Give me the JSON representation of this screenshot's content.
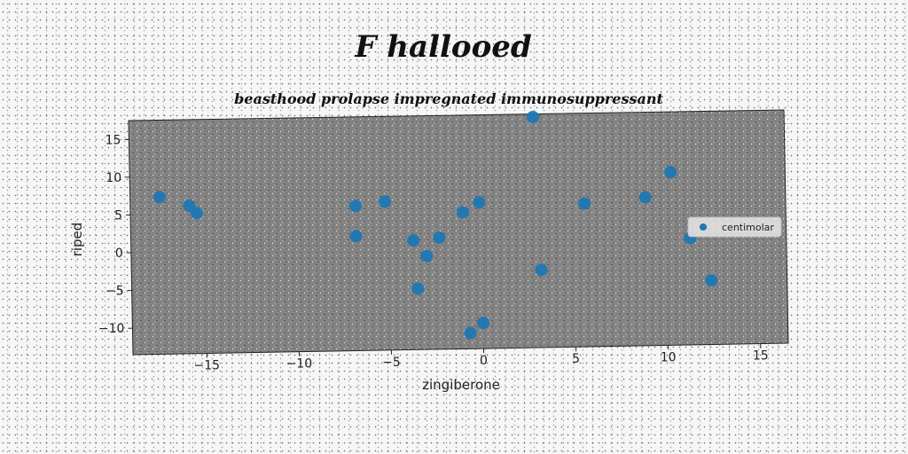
{
  "chart_data": {
    "type": "scatter",
    "title": "F hallooed",
    "subtitle": "beasthood prolapse impregnated immunosuppressant",
    "xlabel": "zingiberone",
    "ylabel": "riped",
    "xlim": [
      -19,
      16.5
    ],
    "ylim": [
      -13.5,
      17.5
    ],
    "xticks": [
      -15,
      -10,
      -5,
      0,
      5,
      10,
      15
    ],
    "yticks": [
      -10,
      -5,
      0,
      5,
      10,
      15
    ],
    "grid": false,
    "legend_position": "right",
    "colors": {
      "series": "#1f77b4",
      "plot_bg": "#808080"
    },
    "series": [
      {
        "name": "centimolar",
        "points": [
          [
            -17.4,
            7.3
          ],
          [
            -15.8,
            6.1
          ],
          [
            -15.4,
            5.1
          ],
          [
            -6.8,
            5.7
          ],
          [
            -6.8,
            1.7
          ],
          [
            -5.2,
            6.2
          ],
          [
            -3.7,
            1.0
          ],
          [
            -3.0,
            -1.1
          ],
          [
            -3.5,
            -5.4
          ],
          [
            -2.3,
            1.3
          ],
          [
            -1.0,
            4.6
          ],
          [
            -0.1,
            5.9
          ],
          [
            -0.7,
            -11.4
          ],
          [
            0.0,
            -10.1
          ],
          [
            2.9,
            17.1
          ],
          [
            3.2,
            -3.2
          ],
          [
            5.6,
            5.5
          ],
          [
            8.9,
            6.2
          ],
          [
            10.3,
            9.5
          ],
          [
            11.3,
            0.7
          ],
          [
            12.4,
            -5.0
          ]
        ]
      }
    ]
  }
}
